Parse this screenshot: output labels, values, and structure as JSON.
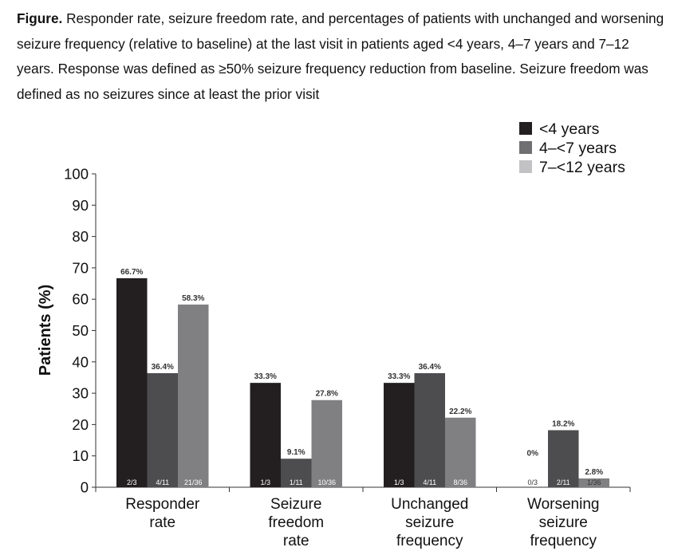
{
  "caption": {
    "label": "Figure.",
    "text": " Responder rate, seizure freedom rate, and percentages of patients with unchanged and worsening seizure frequency (relative to baseline) at the last visit in patients aged <4 years, 4–7 years and 7–12 years. Response was defined as ≥50% seizure frequency reduction from baseline. Seizure freedom was defined as no seizures since at least the prior visit"
  },
  "chart_data": {
    "type": "bar",
    "ylabel": "Patients (%)",
    "xlabel": "",
    "ylim": [
      0,
      100
    ],
    "yticks": [
      0,
      10,
      20,
      30,
      40,
      50,
      60,
      70,
      80,
      90,
      100
    ],
    "grid": false,
    "legend_position": "top-right",
    "categories": [
      [
        "Responder",
        "rate"
      ],
      [
        "Seizure",
        "freedom",
        "rate"
      ],
      [
        "Unchanged",
        "seizure",
        "frequency"
      ],
      [
        "Worsening",
        "seizure",
        "frequency"
      ]
    ],
    "series": [
      {
        "name": "<4 years",
        "color": "#231f20",
        "values": [
          66.7,
          33.3,
          33.3,
          0
        ],
        "labels": [
          "66.7%",
          "33.3%",
          "33.3%",
          "0%"
        ],
        "counts": [
          "2/3",
          "1/3",
          "1/3",
          "0/3"
        ]
      },
      {
        "name": "4–<7 years",
        "color": "#4d4d4f",
        "values": [
          36.4,
          9.1,
          36.4,
          18.2
        ],
        "labels": [
          "36.4%",
          "9.1%",
          "36.4%",
          "18.2%"
        ],
        "counts": [
          "4/11",
          "1/11",
          "4/11",
          "2/11"
        ]
      },
      {
        "name": "7–<12 years",
        "color": "#808083",
        "values": [
          58.3,
          27.8,
          22.2,
          2.8
        ],
        "labels": [
          "58.3%",
          "27.8%",
          "22.2%",
          "2.8%"
        ],
        "counts": [
          "21/36",
          "10/36",
          "8/36",
          "1/36"
        ]
      }
    ],
    "legend_colors": [
      "#231f20",
      "#707072",
      "#c2c2c4"
    ]
  }
}
